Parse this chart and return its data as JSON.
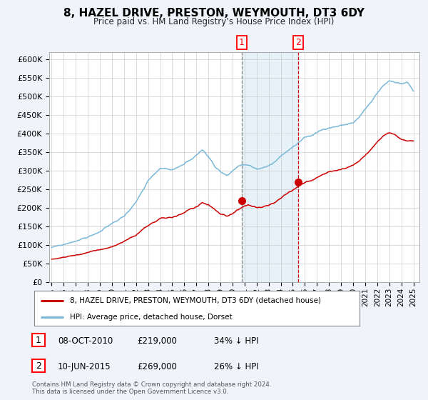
{
  "title": "8, HAZEL DRIVE, PRESTON, WEYMOUTH, DT3 6DY",
  "subtitle": "Price paid vs. HM Land Registry’s House Price Index (HPI)",
  "ylabel_ticks": [
    "£0",
    "£50K",
    "£100K",
    "£150K",
    "£200K",
    "£250K",
    "£300K",
    "£350K",
    "£400K",
    "£450K",
    "£500K",
    "£550K",
    "£600K"
  ],
  "ytick_values": [
    0,
    50000,
    100000,
    150000,
    200000,
    250000,
    300000,
    350000,
    400000,
    450000,
    500000,
    550000,
    600000
  ],
  "ylim": [
    0,
    620000
  ],
  "xlim_start": 1994.8,
  "xlim_end": 2025.5,
  "hpi_color": "#7ab8d9",
  "price_color": "#cc0000",
  "sale1_date": 2010.77,
  "sale1_price": 219000,
  "sale1_label": "1",
  "sale2_date": 2015.44,
  "sale2_price": 269000,
  "sale2_label": "2",
  "vspan_start": 2010.77,
  "vspan_end": 2015.44,
  "legend_price_label": "8, HAZEL DRIVE, PRESTON, WEYMOUTH, DT3 6DY (detached house)",
  "legend_hpi_label": "HPI: Average price, detached house, Dorset",
  "table_rows": [
    {
      "num": "1",
      "date": "08-OCT-2010",
      "price": "£219,000",
      "pct": "34% ↓ HPI"
    },
    {
      "num": "2",
      "date": "10-JUN-2015",
      "price": "£269,000",
      "pct": "26% ↓ HPI"
    }
  ],
  "footer": "Contains HM Land Registry data © Crown copyright and database right 2024.\nThis data is licensed under the Open Government Licence v3.0.",
  "background_color": "#f0f4fa",
  "plot_bg_color": "#ffffff",
  "grid_color": "#cccccc",
  "hpi_keypoints": [
    [
      1995.0,
      93000
    ],
    [
      1996.0,
      99000
    ],
    [
      1997.0,
      110000
    ],
    [
      1998.0,
      120000
    ],
    [
      1999.0,
      135000
    ],
    [
      2000.0,
      155000
    ],
    [
      2001.0,
      175000
    ],
    [
      2002.0,
      215000
    ],
    [
      2003.0,
      265000
    ],
    [
      2004.0,
      295000
    ],
    [
      2005.0,
      285000
    ],
    [
      2006.0,
      305000
    ],
    [
      2007.0,
      330000
    ],
    [
      2007.5,
      345000
    ],
    [
      2008.0,
      325000
    ],
    [
      2008.5,
      305000
    ],
    [
      2009.0,
      290000
    ],
    [
      2009.5,
      285000
    ],
    [
      2010.0,
      295000
    ],
    [
      2010.5,
      310000
    ],
    [
      2011.0,
      315000
    ],
    [
      2011.5,
      308000
    ],
    [
      2012.0,
      298000
    ],
    [
      2012.5,
      300000
    ],
    [
      2013.0,
      308000
    ],
    [
      2013.5,
      318000
    ],
    [
      2014.0,
      335000
    ],
    [
      2014.5,
      348000
    ],
    [
      2015.0,
      358000
    ],
    [
      2015.5,
      368000
    ],
    [
      2016.0,
      375000
    ],
    [
      2016.5,
      380000
    ],
    [
      2017.0,
      390000
    ],
    [
      2017.5,
      400000
    ],
    [
      2018.0,
      405000
    ],
    [
      2018.5,
      410000
    ],
    [
      2019.0,
      415000
    ],
    [
      2019.5,
      418000
    ],
    [
      2020.0,
      420000
    ],
    [
      2020.5,
      435000
    ],
    [
      2021.0,
      455000
    ],
    [
      2021.5,
      475000
    ],
    [
      2022.0,
      500000
    ],
    [
      2022.5,
      520000
    ],
    [
      2023.0,
      535000
    ],
    [
      2023.5,
      530000
    ],
    [
      2024.0,
      525000
    ],
    [
      2024.5,
      530000
    ],
    [
      2025.0,
      505000
    ]
  ],
  "price_keypoints": [
    [
      1995.0,
      62000
    ],
    [
      1996.0,
      67000
    ],
    [
      1997.0,
      74000
    ],
    [
      1998.0,
      81000
    ],
    [
      1999.0,
      89000
    ],
    [
      2000.0,
      98000
    ],
    [
      2001.0,
      110000
    ],
    [
      2002.0,
      128000
    ],
    [
      2003.0,
      150000
    ],
    [
      2004.0,
      168000
    ],
    [
      2005.0,
      172000
    ],
    [
      2006.0,
      183000
    ],
    [
      2007.0,
      200000
    ],
    [
      2007.5,
      210000
    ],
    [
      2008.0,
      205000
    ],
    [
      2008.5,
      195000
    ],
    [
      2009.0,
      182000
    ],
    [
      2009.5,
      178000
    ],
    [
      2010.0,
      185000
    ],
    [
      2010.5,
      192000
    ],
    [
      2011.0,
      200000
    ],
    [
      2011.5,
      198000
    ],
    [
      2012.0,
      192000
    ],
    [
      2012.5,
      193000
    ],
    [
      2013.0,
      197000
    ],
    [
      2013.5,
      205000
    ],
    [
      2014.0,
      215000
    ],
    [
      2014.5,
      225000
    ],
    [
      2015.0,
      235000
    ],
    [
      2015.5,
      245000
    ],
    [
      2016.0,
      255000
    ],
    [
      2016.5,
      262000
    ],
    [
      2017.0,
      272000
    ],
    [
      2017.5,
      280000
    ],
    [
      2018.0,
      288000
    ],
    [
      2018.5,
      293000
    ],
    [
      2019.0,
      298000
    ],
    [
      2019.5,
      302000
    ],
    [
      2020.0,
      305000
    ],
    [
      2020.5,
      315000
    ],
    [
      2021.0,
      330000
    ],
    [
      2021.5,
      348000
    ],
    [
      2022.0,
      368000
    ],
    [
      2022.5,
      385000
    ],
    [
      2023.0,
      392000
    ],
    [
      2023.5,
      385000
    ],
    [
      2023.75,
      378000
    ],
    [
      2024.0,
      372000
    ],
    [
      2024.5,
      368000
    ],
    [
      2025.0,
      370000
    ]
  ]
}
